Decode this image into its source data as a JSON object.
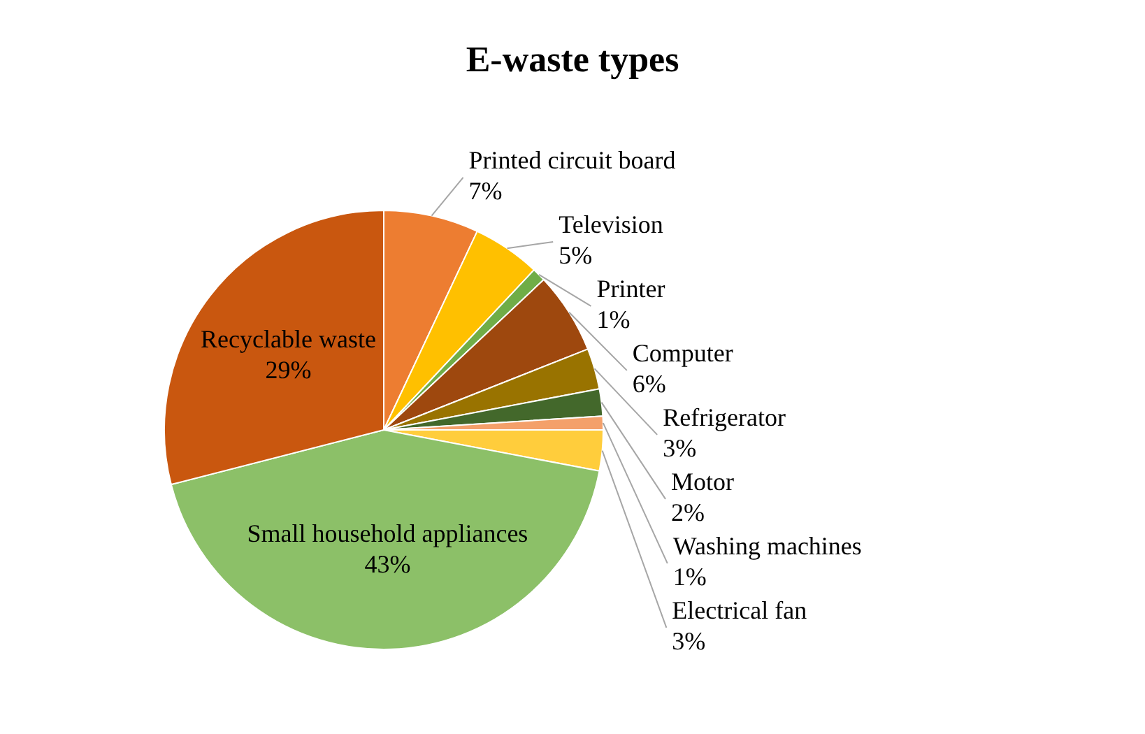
{
  "chart_data": {
    "type": "pie",
    "title": "E-waste types",
    "categories": [
      "Printed circuit board",
      "Television",
      "Printer",
      "Computer",
      "Refrigerator",
      "Motor",
      "Washing machines",
      "Electrical fan",
      "Small household appliances",
      "Recyclable waste"
    ],
    "values": [
      7,
      5,
      1,
      6,
      3,
      2,
      1,
      3,
      43,
      29
    ],
    "value_labels": [
      "7%",
      "5%",
      "1%",
      "6%",
      "3%",
      "2%",
      "1%",
      "3%",
      "43%",
      "29%"
    ],
    "colors": [
      "#ed7d31",
      "#ffc000",
      "#70ad47",
      "#9e480e",
      "#997300",
      "#43682b",
      "#f4a06a",
      "#ffcd3c",
      "#8cc068",
      "#c9570f"
    ],
    "legend": false
  }
}
